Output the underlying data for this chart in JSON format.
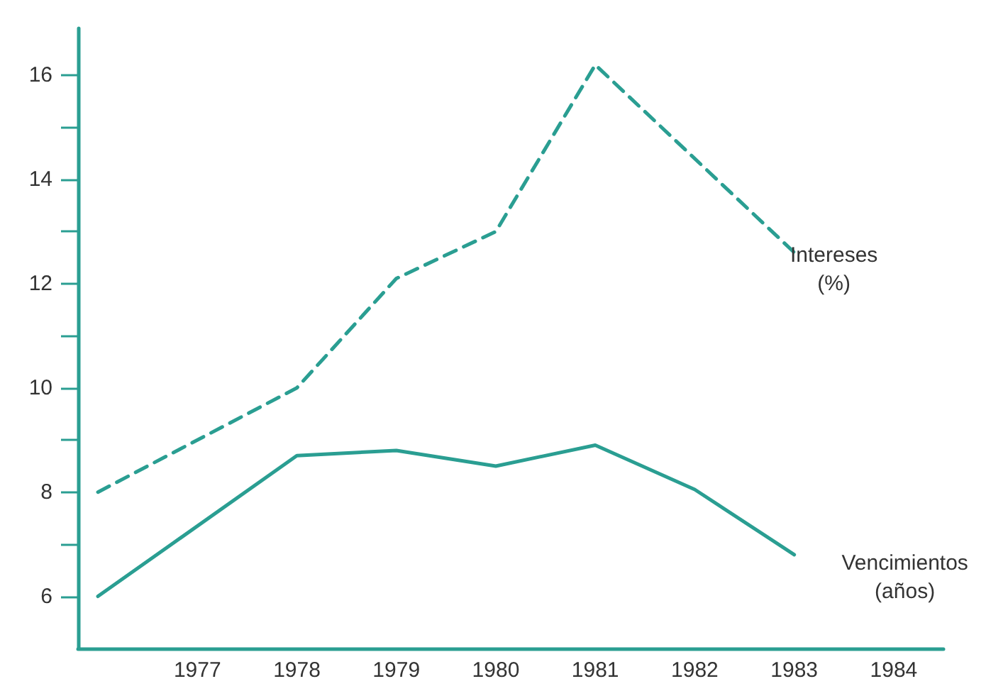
{
  "chart_data": {
    "type": "line",
    "x": [
      1976,
      1978,
      1979,
      1980,
      1981,
      1982,
      1983
    ],
    "series": [
      {
        "name": "Intereses\n(%)",
        "color": "#2a9e92",
        "line_style": "dashed",
        "values": [
          8.0,
          10.0,
          12.1,
          13.0,
          16.2,
          null,
          12.6
        ]
      },
      {
        "name": "Vencimientos\n(años)",
        "color": "#2a9e92",
        "line_style": "solid",
        "values": [
          6.0,
          8.7,
          8.8,
          8.5,
          8.9,
          8.05,
          6.8
        ]
      }
    ],
    "xlim": [
      1975.8,
      1984.5
    ],
    "xticks": [
      1977,
      1978,
      1979,
      1980,
      1981,
      1982,
      1983,
      1984
    ],
    "ylim": [
      5,
      16.9
    ],
    "yticks": [
      6,
      {
        "value": 7,
        "label": null
      },
      8,
      {
        "value": 9,
        "label": null
      },
      10,
      {
        "value": 11,
        "label": null
      },
      12,
      {
        "value": 13,
        "label": null
      },
      14,
      {
        "value": 15,
        "label": null
      },
      16
    ],
    "grid": false,
    "legend": false,
    "marker": "none"
  }
}
